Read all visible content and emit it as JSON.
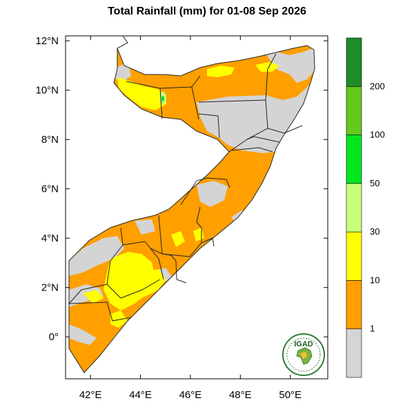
{
  "title": "Total Rainfall (mm) for 01-08 Sep 2026",
  "map": {
    "lon_range": [
      41.0,
      51.5
    ],
    "lat_range": [
      -1.7,
      12.2
    ],
    "x_ticks": [
      {
        "value": 42,
        "label": "42°E"
      },
      {
        "value": 44,
        "label": "44°E"
      },
      {
        "value": 46,
        "label": "46°E"
      },
      {
        "value": 48,
        "label": "48°E"
      },
      {
        "value": 50,
        "label": "50°E"
      }
    ],
    "y_ticks": [
      {
        "value": 0,
        "label": "0°"
      },
      {
        "value": 2,
        "label": "2°N"
      },
      {
        "value": 4,
        "label": "4°N"
      },
      {
        "value": 6,
        "label": "6°N"
      },
      {
        "value": 8,
        "label": "8°N"
      },
      {
        "value": 10,
        "label": "10°N"
      },
      {
        "value": 12,
        "label": "12°N"
      }
    ],
    "colors": {
      "no_rain": "#d4d4d4",
      "r1_10": "#ff9f00",
      "r10_30": "#ffff00",
      "r30_50": "#c8ff78",
      "r50_100": "#00e61e",
      "r100_200": "#64c81e",
      "r200_plus": "#1e8c28",
      "border": "#222222"
    }
  },
  "colorbar": {
    "bins": [
      {
        "color": "#d4d4d4",
        "label": "1"
      },
      {
        "color": "#ff9f00",
        "label": "10"
      },
      {
        "color": "#ffff00",
        "label": "30"
      },
      {
        "color": "#c8ff78",
        "label": "50"
      },
      {
        "color": "#00e61e",
        "label": "100"
      },
      {
        "color": "#64c81e",
        "label": "200"
      },
      {
        "color": "#1e8c28",
        "label": ""
      }
    ]
  },
  "logo": {
    "text": "IGAD",
    "icon": "igad-logo-icon"
  }
}
